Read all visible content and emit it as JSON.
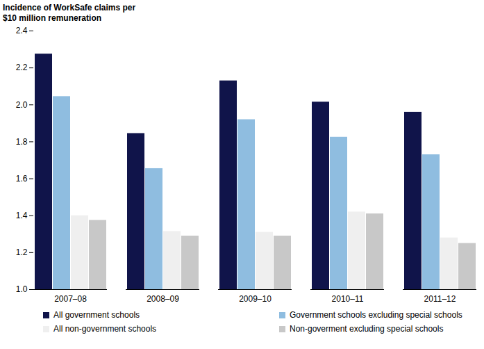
{
  "chart_data": {
    "type": "bar",
    "y_label": "Incidence of WorkSafe claims per $10 million remuneration",
    "categories": [
      "2007–08",
      "2008–09",
      "2009–10",
      "2010–11",
      "2011–12"
    ],
    "series": [
      {
        "name": "All government schools",
        "color": "#10144a",
        "values": [
          2.275,
          1.845,
          2.13,
          2.015,
          1.96
        ]
      },
      {
        "name": "Government schools excluding special schools",
        "color": "#8fbde0",
        "values": [
          2.045,
          1.655,
          1.92,
          1.825,
          1.73
        ]
      },
      {
        "name": "All non-government schools",
        "color": "#efefef",
        "values": [
          1.4,
          1.315,
          1.31,
          1.42,
          1.28
        ]
      },
      {
        "name": "Non-goverment excluding special schools",
        "color": "#c8c8c8",
        "values": [
          1.375,
          1.29,
          1.29,
          1.41,
          1.25
        ]
      }
    ],
    "ylim": [
      1.0,
      2.4
    ],
    "yticks": [
      {
        "value": 1.0,
        "label": "1.0"
      },
      1.2,
      1.4,
      1.6,
      1.8,
      {
        "value": 2.0,
        "label": "2.0"
      },
      2.2,
      2.4
    ],
    "grid": false,
    "legend": "bottom"
  }
}
